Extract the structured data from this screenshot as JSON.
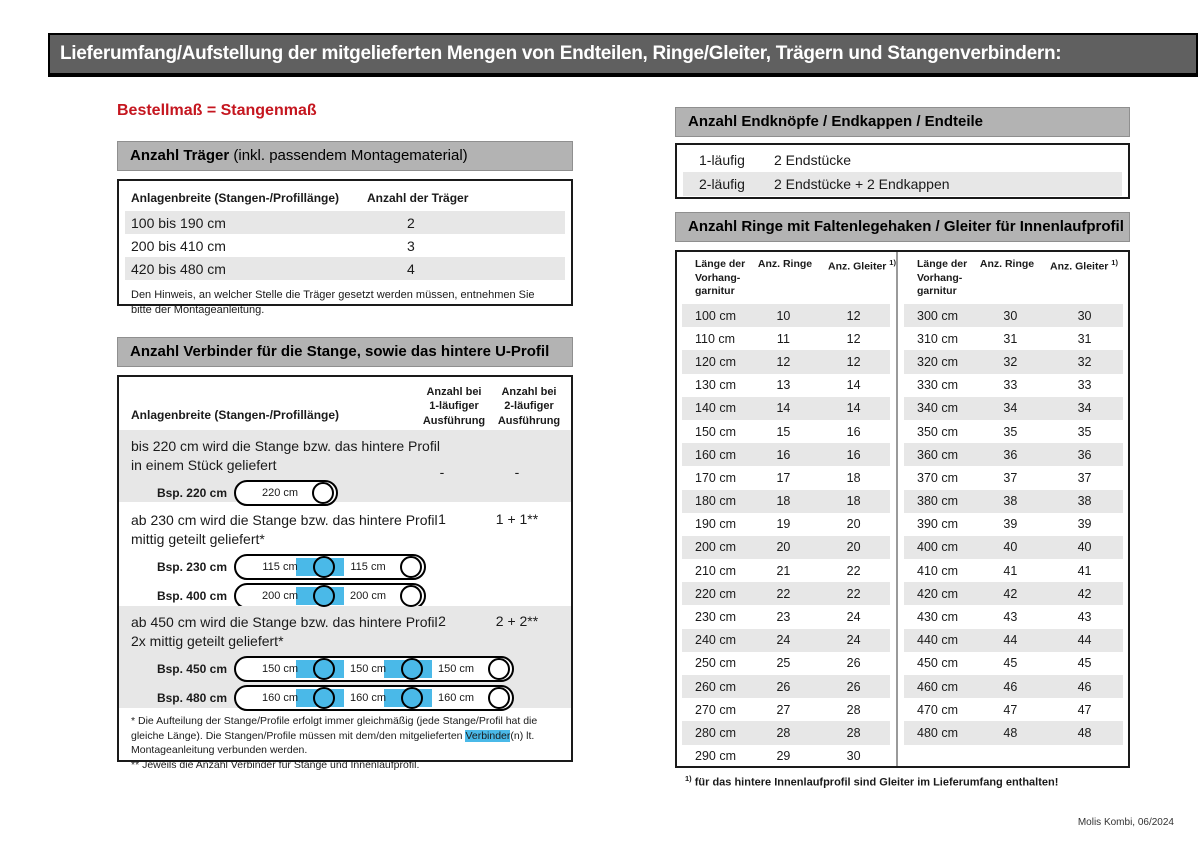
{
  "header": {
    "title": "Lieferumfang/Aufstellung der mitgelieferten Mengen von Endteilen, Ringe/Gleiter, Trägern und Stangenverbindern:"
  },
  "left": {
    "order_note": "Bestellmaß = Stangenmaß",
    "traeger": {
      "title_bold": "Anzahl Träger",
      "title_rest": " (inkl. passendem Montagematerial)",
      "col1": "Anlagenbreite (Stangen-/Profillänge)",
      "col2": "Anzahl der Träger",
      "rows": [
        [
          "100 bis 190 cm",
          "2"
        ],
        [
          "200 bis 410 cm",
          "3"
        ],
        [
          "420 bis 480 cm",
          "4"
        ]
      ],
      "note": "Den Hinweis, an welcher Stelle die Träger gesetzt werden müssen, entnehmen Sie bitte der Montageanleitung."
    },
    "verbinder": {
      "title": "Anzahl Verbinder für die Stange, sowie das hintere U-Profil",
      "col1": "Anlagenbreite (Stangen-/Profillänge)",
      "col2": "Anzahl bei\n1-läufiger\nAusführung",
      "col3": "Anzahl bei\n2-läufiger\nAusführung",
      "rows": [
        {
          "text": "bis 220 cm wird die Stange bzw. das hintere Profil in einem Stück geliefert",
          "v1": "-",
          "v2": "-",
          "diagrams": [
            {
              "label": "Bsp. 220 cm",
              "segments": [
                "220 cm"
              ]
            }
          ]
        },
        {
          "text": "ab 230 cm wird die Stange bzw. das hintere Profil mittig geteilt geliefert*",
          "v1": "1",
          "v2": "1 + 1**",
          "diagrams": [
            {
              "label": "Bsp. 230 cm",
              "segments": [
                "115 cm",
                "115 cm"
              ]
            },
            {
              "label": "Bsp. 400 cm",
              "segments": [
                "200 cm",
                "200 cm"
              ]
            }
          ]
        },
        {
          "text": "ab 450 cm wird die Stange bzw. das hintere Profil 2x mittig geteilt geliefert*",
          "v1": "2",
          "v2": "2 + 2**",
          "diagrams": [
            {
              "label": "Bsp. 450 cm",
              "segments": [
                "150 cm",
                "150 cm",
                "150 cm"
              ]
            },
            {
              "label": "Bsp. 480 cm",
              "segments": [
                "160 cm",
                "160 cm",
                "160 cm"
              ]
            }
          ]
        }
      ],
      "footnote1_pre": "* Die Aufteilung der Stange/Profile erfolgt immer gleichmäßig (jede Stange/Profil hat die gleiche Länge). Die Stangen/Profile müssen mit dem/den mitgelieferten ",
      "footnote1_highlight": "Verbinder",
      "footnote1_post": "(n) lt. Montageanleitung verbunden werden.",
      "footnote2": "** Jeweils die Anzahl Verbinder für Stange und Innenlaufprofil."
    }
  },
  "right": {
    "endteile": {
      "title": "Anzahl Endknöpfe / Endkappen / Endteile",
      "rows": [
        [
          "1-läufig",
          "2 Endstücke"
        ],
        [
          "2-läufig",
          "2 Endstücke + 2 Endkappen"
        ]
      ]
    },
    "ringe": {
      "title": "Anzahl Ringe mit Faltenlegehaken / Gleiter für Innenlaufprofil",
      "col_length": "Länge der\nVorhang-\ngarnitur",
      "col_ringe": "Anz. Ringe",
      "col_gleiter": "Anz. Gleiter ",
      "col_gleiter_sup": "1)",
      "left_rows": [
        [
          "100 cm",
          "10",
          "12"
        ],
        [
          "110 cm",
          "11",
          "12"
        ],
        [
          "120 cm",
          "12",
          "12"
        ],
        [
          "130 cm",
          "13",
          "14"
        ],
        [
          "140 cm",
          "14",
          "14"
        ],
        [
          "150 cm",
          "15",
          "16"
        ],
        [
          "160 cm",
          "16",
          "16"
        ],
        [
          "170 cm",
          "17",
          "18"
        ],
        [
          "180 cm",
          "18",
          "18"
        ],
        [
          "190 cm",
          "19",
          "20"
        ],
        [
          "200 cm",
          "20",
          "20"
        ],
        [
          "210 cm",
          "21",
          "22"
        ],
        [
          "220 cm",
          "22",
          "22"
        ],
        [
          "230 cm",
          "23",
          "24"
        ],
        [
          "240 cm",
          "24",
          "24"
        ],
        [
          "250 cm",
          "25",
          "26"
        ],
        [
          "260 cm",
          "26",
          "26"
        ],
        [
          "270 cm",
          "27",
          "28"
        ],
        [
          "280 cm",
          "28",
          "28"
        ],
        [
          "290 cm",
          "29",
          "30"
        ]
      ],
      "right_rows": [
        [
          "300 cm",
          "30",
          "30"
        ],
        [
          "310 cm",
          "31",
          "31"
        ],
        [
          "320 cm",
          "32",
          "32"
        ],
        [
          "330 cm",
          "33",
          "33"
        ],
        [
          "340 cm",
          "34",
          "34"
        ],
        [
          "350 cm",
          "35",
          "35"
        ],
        [
          "360 cm",
          "36",
          "36"
        ],
        [
          "370 cm",
          "37",
          "37"
        ],
        [
          "380 cm",
          "38",
          "38"
        ],
        [
          "390 cm",
          "39",
          "39"
        ],
        [
          "400 cm",
          "40",
          "40"
        ],
        [
          "410 cm",
          "41",
          "41"
        ],
        [
          "420 cm",
          "42",
          "42"
        ],
        [
          "430 cm",
          "43",
          "43"
        ],
        [
          "440 cm",
          "44",
          "44"
        ],
        [
          "450 cm",
          "45",
          "45"
        ],
        [
          "460 cm",
          "46",
          "46"
        ],
        [
          "470 cm",
          "47",
          "47"
        ],
        [
          "480 cm",
          "48",
          "48"
        ]
      ],
      "footnote_sup": "1)",
      "footnote_text": " für das hintere Innenlaufprofil sind Gleiter im Lieferumfang enthalten!"
    }
  },
  "footer": {
    "doc_ref": "Molis Kombi, 06/2024"
  },
  "colors": {
    "accent_red": "#c5161f",
    "connector_blue": "#4ab9e8",
    "section_header_gray": "#b3b3b3",
    "topbar_gray": "#606060",
    "row_shade": "#e7e7e7"
  }
}
